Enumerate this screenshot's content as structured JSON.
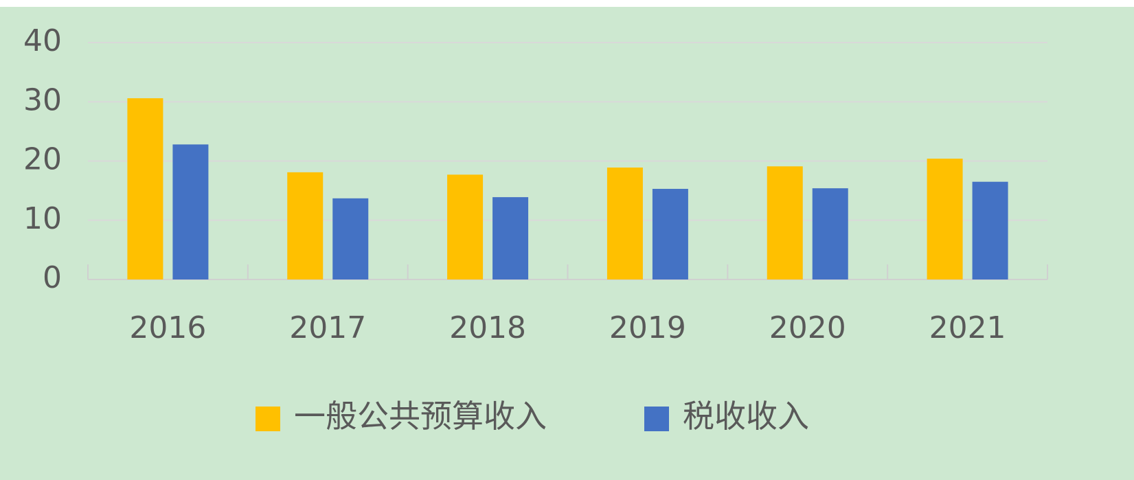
{
  "chart_data": {
    "type": "bar",
    "categories": [
      "2016",
      "2017",
      "2018",
      "2019",
      "2020",
      "2021"
    ],
    "series": [
      {
        "name": "一般公共预算收入",
        "color": "#ffc000",
        "values": [
          30.6,
          18.1,
          17.7,
          18.9,
          19.1,
          20.4
        ]
      },
      {
        "name": "税收收入",
        "color": "#4472c4",
        "values": [
          22.8,
          13.7,
          13.9,
          15.3,
          15.4,
          16.5
        ]
      }
    ],
    "ylim": [
      0,
      40
    ],
    "yticks": [
      0,
      10,
      20,
      30,
      40
    ],
    "grid": true,
    "legend": "bottom"
  }
}
